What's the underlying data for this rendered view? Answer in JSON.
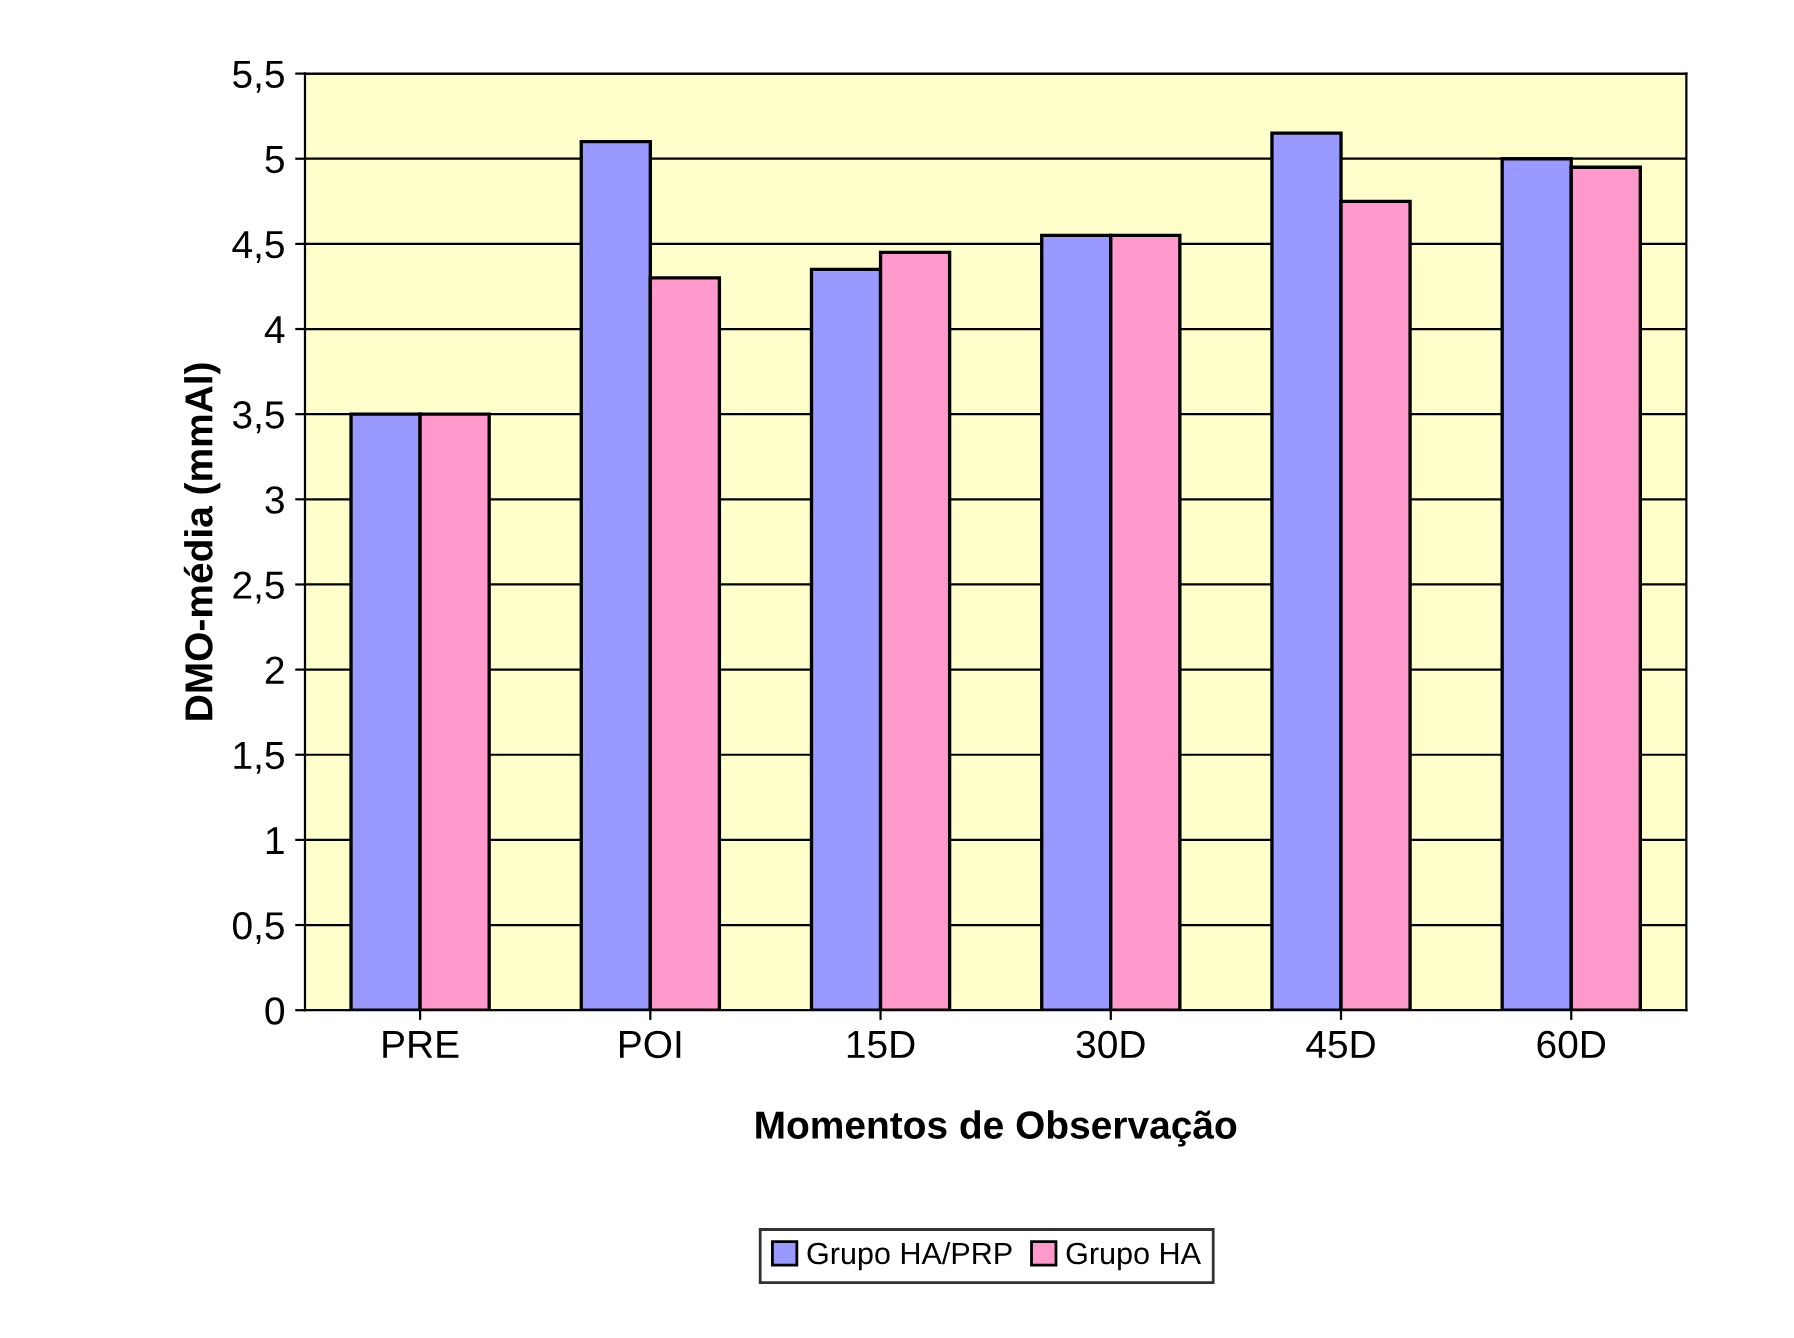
{
  "chart_data": {
    "type": "bar",
    "xlabel": "Momentos de Observação",
    "ylabel": "DMO-média (mmAl)",
    "categories": [
      "PRE",
      "POI",
      "15D",
      "30D",
      "45D",
      "60D"
    ],
    "series": [
      {
        "name": "Grupo HA/PRP",
        "color": "#9999ff",
        "values": [
          3.5,
          5.1,
          4.35,
          4.55,
          5.15,
          5.0
        ]
      },
      {
        "name": "Grupo HA",
        "color": "#ff99cc",
        "values": [
          3.5,
          4.3,
          4.45,
          4.55,
          4.75,
          4.95
        ]
      }
    ],
    "ylim": [
      0,
      5.5
    ],
    "yticks": [
      0,
      {
        "value": 0.5,
        "label": "0,5"
      },
      1,
      {
        "value": 1.5,
        "label": "1,5"
      },
      2,
      {
        "value": 2.5,
        "label": "2,5"
      },
      3,
      {
        "value": 3.5,
        "label": "3,5"
      },
      4,
      {
        "value": 4.5,
        "label": "4,5"
      },
      5,
      {
        "value": 5.5,
        "label": "5,5"
      }
    ],
    "grid": "y",
    "legend": "bottom"
  }
}
